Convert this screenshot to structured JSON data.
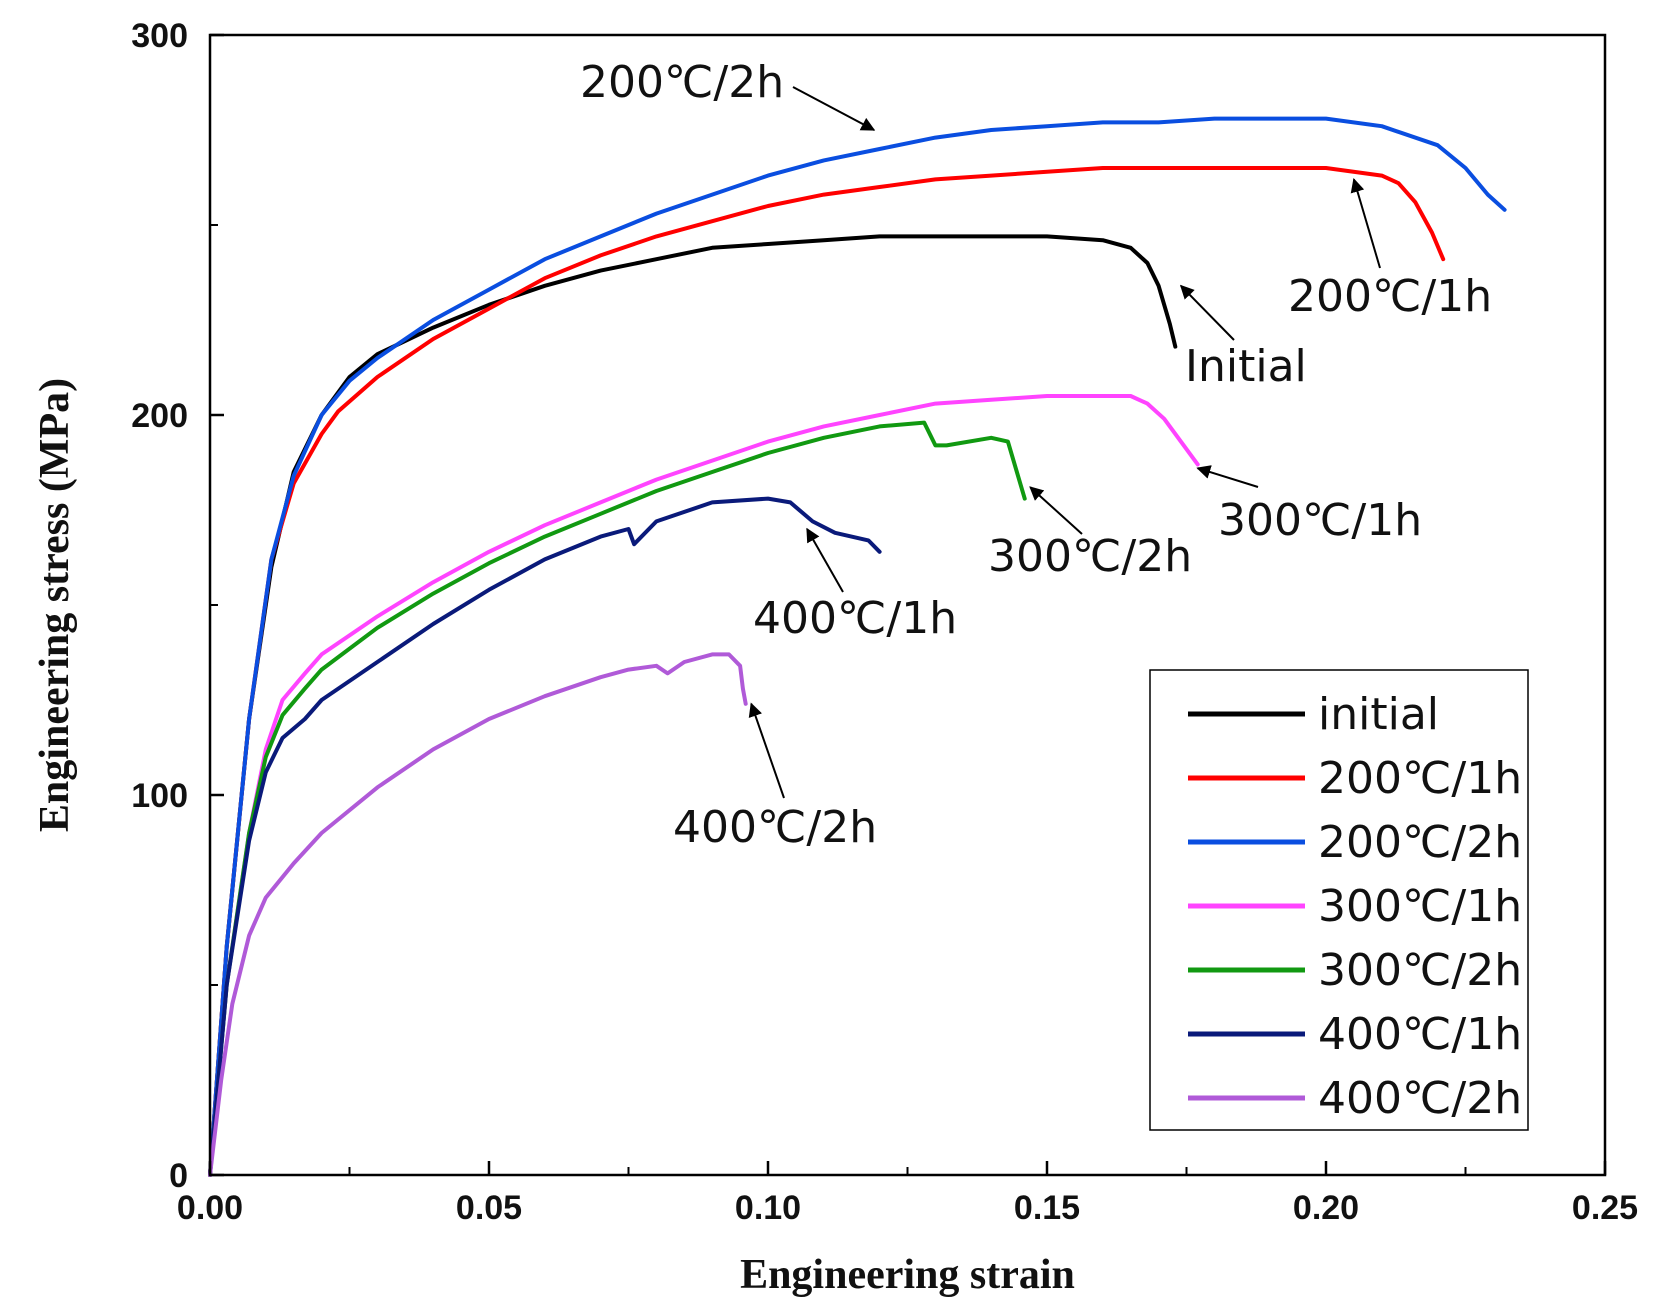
{
  "chart_data": {
    "type": "line",
    "xlabel": "Engineering strain",
    "ylabel": "Engineering stress (MPa)",
    "xlim": [
      0,
      0.25
    ],
    "ylim": [
      0,
      300
    ],
    "x_ticks": [
      0,
      0.05,
      0.1,
      0.15,
      0.2,
      0.25
    ],
    "x_tick_labels": [
      "0.00",
      "0.05",
      "0.10",
      "0.15",
      "0.20",
      "0.25"
    ],
    "y_ticks": [
      0,
      100,
      200,
      300
    ],
    "y_tick_labels": [
      "0",
      "100",
      "200",
      "300"
    ],
    "y_minor_ticks": [
      50,
      150,
      250
    ],
    "legend_position": "bottom-right",
    "series": [
      {
        "name": "initial",
        "color": "#000000",
        "points": [
          [
            0,
            0
          ],
          [
            0.003,
            60
          ],
          [
            0.007,
            120
          ],
          [
            0.011,
            160
          ],
          [
            0.015,
            185
          ],
          [
            0.02,
            200
          ],
          [
            0.025,
            210
          ],
          [
            0.03,
            216
          ],
          [
            0.04,
            223
          ],
          [
            0.05,
            229
          ],
          [
            0.06,
            234
          ],
          [
            0.07,
            238
          ],
          [
            0.08,
            241
          ],
          [
            0.09,
            244
          ],
          [
            0.1,
            245
          ],
          [
            0.11,
            246
          ],
          [
            0.12,
            247
          ],
          [
            0.13,
            247
          ],
          [
            0.14,
            247
          ],
          [
            0.15,
            247
          ],
          [
            0.16,
            246
          ],
          [
            0.165,
            244
          ],
          [
            0.168,
            240
          ],
          [
            0.17,
            234
          ],
          [
            0.171,
            229
          ],
          [
            0.172,
            224
          ],
          [
            0.173,
            218
          ]
        ]
      },
      {
        "name": "200℃/1h",
        "color": "#ff0000",
        "points": [
          [
            0,
            0
          ],
          [
            0.003,
            60
          ],
          [
            0.007,
            120
          ],
          [
            0.011,
            162
          ],
          [
            0.015,
            182
          ],
          [
            0.02,
            195
          ],
          [
            0.023,
            201
          ],
          [
            0.03,
            210
          ],
          [
            0.04,
            220
          ],
          [
            0.05,
            228
          ],
          [
            0.06,
            236
          ],
          [
            0.07,
            242
          ],
          [
            0.08,
            247
          ],
          [
            0.09,
            251
          ],
          [
            0.1,
            255
          ],
          [
            0.11,
            258
          ],
          [
            0.12,
            260
          ],
          [
            0.13,
            262
          ],
          [
            0.14,
            263
          ],
          [
            0.15,
            264
          ],
          [
            0.16,
            265
          ],
          [
            0.17,
            265
          ],
          [
            0.18,
            265
          ],
          [
            0.19,
            265
          ],
          [
            0.2,
            265
          ],
          [
            0.21,
            263
          ],
          [
            0.213,
            261
          ],
          [
            0.216,
            256
          ],
          [
            0.219,
            248
          ],
          [
            0.221,
            241
          ]
        ]
      },
      {
        "name": "200℃/2h",
        "color": "#0a4ee0",
        "points": [
          [
            0,
            0
          ],
          [
            0.003,
            60
          ],
          [
            0.007,
            120
          ],
          [
            0.011,
            162
          ],
          [
            0.015,
            184
          ],
          [
            0.02,
            200
          ],
          [
            0.025,
            209
          ],
          [
            0.03,
            215
          ],
          [
            0.04,
            225
          ],
          [
            0.05,
            233
          ],
          [
            0.06,
            241
          ],
          [
            0.07,
            247
          ],
          [
            0.08,
            253
          ],
          [
            0.09,
            258
          ],
          [
            0.1,
            263
          ],
          [
            0.11,
            267
          ],
          [
            0.12,
            270
          ],
          [
            0.13,
            273
          ],
          [
            0.14,
            275
          ],
          [
            0.15,
            276
          ],
          [
            0.16,
            277
          ],
          [
            0.17,
            277
          ],
          [
            0.18,
            278
          ],
          [
            0.19,
            278
          ],
          [
            0.2,
            278
          ],
          [
            0.21,
            276
          ],
          [
            0.22,
            271
          ],
          [
            0.225,
            265
          ],
          [
            0.229,
            258
          ],
          [
            0.232,
            254
          ]
        ]
      },
      {
        "name": "300℃/1h",
        "color": "#ff44ff",
        "points": [
          [
            0,
            0
          ],
          [
            0.003,
            50
          ],
          [
            0.007,
            90
          ],
          [
            0.01,
            112
          ],
          [
            0.013,
            125
          ],
          [
            0.017,
            132
          ],
          [
            0.02,
            137
          ],
          [
            0.03,
            147
          ],
          [
            0.04,
            156
          ],
          [
            0.05,
            164
          ],
          [
            0.06,
            171
          ],
          [
            0.07,
            177
          ],
          [
            0.08,
            183
          ],
          [
            0.09,
            188
          ],
          [
            0.1,
            193
          ],
          [
            0.11,
            197
          ],
          [
            0.12,
            200
          ],
          [
            0.13,
            203
          ],
          [
            0.14,
            204
          ],
          [
            0.15,
            205
          ],
          [
            0.16,
            205
          ],
          [
            0.165,
            205
          ],
          [
            0.168,
            203
          ],
          [
            0.171,
            199
          ],
          [
            0.174,
            193
          ],
          [
            0.177,
            187
          ]
        ]
      },
      {
        "name": "300℃/2h",
        "color": "#119911",
        "points": [
          [
            0,
            0
          ],
          [
            0.003,
            50
          ],
          [
            0.007,
            90
          ],
          [
            0.01,
            110
          ],
          [
            0.013,
            121
          ],
          [
            0.017,
            128
          ],
          [
            0.02,
            133
          ],
          [
            0.03,
            144
          ],
          [
            0.04,
            153
          ],
          [
            0.05,
            161
          ],
          [
            0.06,
            168
          ],
          [
            0.07,
            174
          ],
          [
            0.08,
            180
          ],
          [
            0.09,
            185
          ],
          [
            0.1,
            190
          ],
          [
            0.11,
            194
          ],
          [
            0.12,
            197
          ],
          [
            0.128,
            198
          ],
          [
            0.13,
            192
          ],
          [
            0.132,
            192
          ],
          [
            0.14,
            194
          ],
          [
            0.143,
            193
          ],
          [
            0.144,
            188
          ],
          [
            0.145,
            183
          ],
          [
            0.146,
            178
          ]
        ]
      },
      {
        "name": "400℃/1h",
        "color": "#0a1a7a",
        "points": [
          [
            0,
            0
          ],
          [
            0.003,
            50
          ],
          [
            0.007,
            88
          ],
          [
            0.01,
            106
          ],
          [
            0.013,
            115
          ],
          [
            0.017,
            120
          ],
          [
            0.02,
            125
          ],
          [
            0.03,
            135
          ],
          [
            0.04,
            145
          ],
          [
            0.05,
            154
          ],
          [
            0.06,
            162
          ],
          [
            0.07,
            168
          ],
          [
            0.075,
            170
          ],
          [
            0.076,
            166
          ],
          [
            0.08,
            172
          ],
          [
            0.09,
            177
          ],
          [
            0.1,
            178
          ],
          [
            0.104,
            177
          ],
          [
            0.108,
            172
          ],
          [
            0.112,
            169
          ],
          [
            0.118,
            167
          ],
          [
            0.12,
            164
          ]
        ]
      },
      {
        "name": "400℃/2h",
        "color": "#b05ad8",
        "points": [
          [
            0,
            0
          ],
          [
            0.002,
            25
          ],
          [
            0.004,
            45
          ],
          [
            0.007,
            63
          ],
          [
            0.01,
            73
          ],
          [
            0.015,
            82
          ],
          [
            0.02,
            90
          ],
          [
            0.03,
            102
          ],
          [
            0.04,
            112
          ],
          [
            0.05,
            120
          ],
          [
            0.06,
            126
          ],
          [
            0.07,
            131
          ],
          [
            0.075,
            133
          ],
          [
            0.08,
            134
          ],
          [
            0.082,
            132
          ],
          [
            0.085,
            135
          ],
          [
            0.09,
            137
          ],
          [
            0.093,
            137
          ],
          [
            0.095,
            134
          ],
          [
            0.0955,
            128
          ],
          [
            0.096,
            124
          ]
        ]
      }
    ],
    "annotations": [
      {
        "text": "200℃/2h",
        "series": "200℃/2h",
        "at": [
          0.119,
          275
        ]
      },
      {
        "text": "200℃/1h",
        "series": "200℃/1h",
        "at": [
          0.205,
          262
        ]
      },
      {
        "text": "Initial",
        "series": "initial",
        "at": [
          0.174,
          234
        ]
      },
      {
        "text": "300℃/1h",
        "series": "300℃/1h",
        "at": [
          0.177,
          186
        ]
      },
      {
        "text": "300℃/2h",
        "series": "300℃/2h",
        "at": [
          0.147,
          181
        ]
      },
      {
        "text": "400℃/1h",
        "series": "400℃/1h",
        "at": [
          0.107,
          170
        ]
      },
      {
        "text": "400℃/2h",
        "series": "400℃/2h",
        "at": [
          0.097,
          124
        ]
      }
    ]
  }
}
